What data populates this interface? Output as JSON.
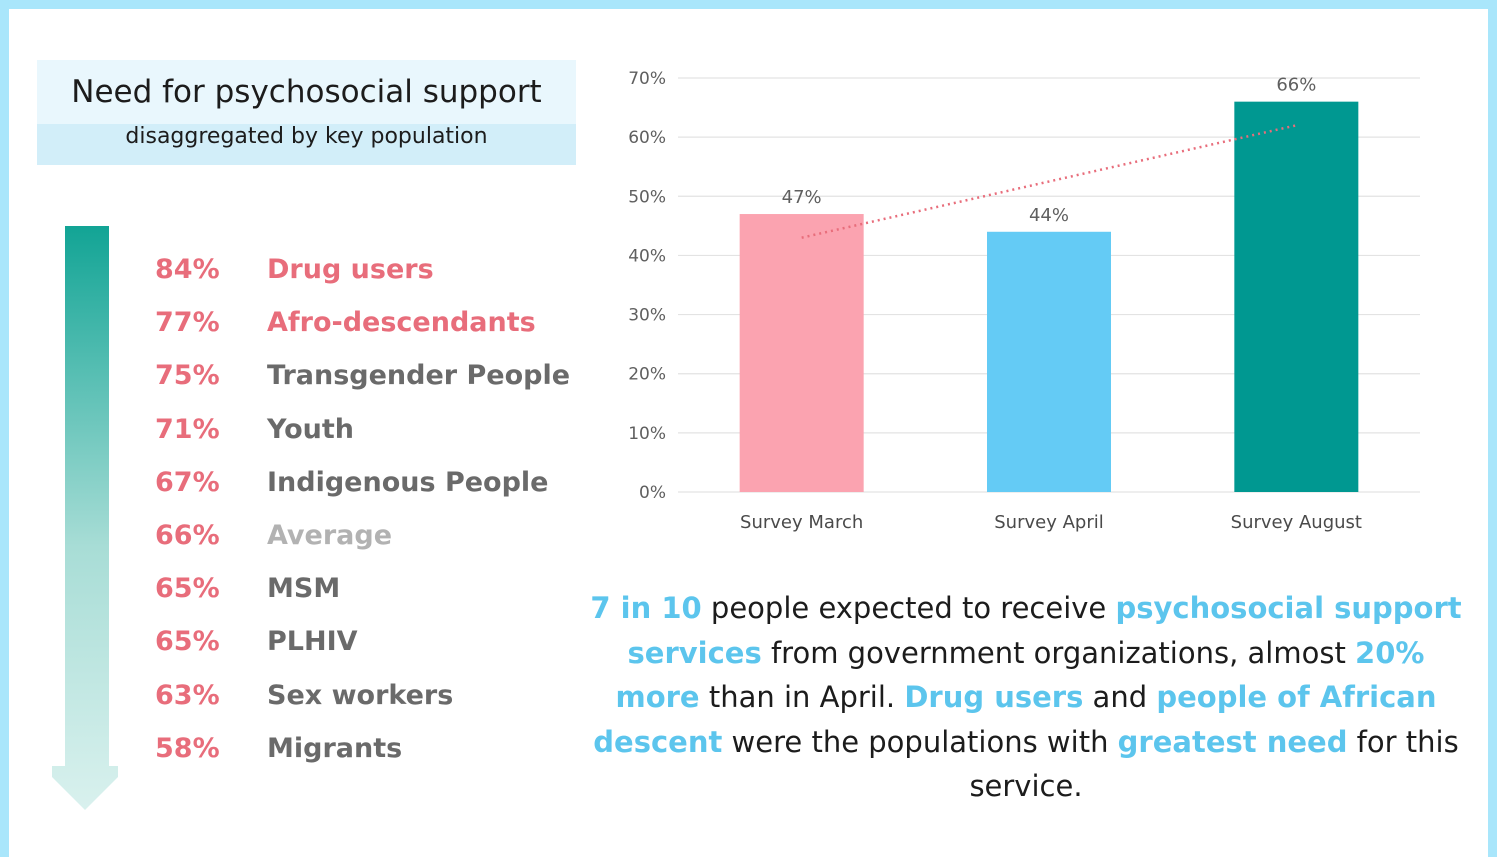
{
  "header": {
    "title": "Need for psychosocial support",
    "subtitle": "disaggregated by key population"
  },
  "colors": {
    "frame": "#a9e6fb",
    "pct_red": "#e86d7b",
    "name_red": "#e86d7b",
    "name_dark": "#6a6a6a",
    "name_light": "#b2b2b2",
    "arrow_top": "#12a495",
    "arrow_bottom": "#d9f1ee",
    "highlight": "#5cc5ed"
  },
  "key_populations": [
    {
      "pct": "84%",
      "name": "Drug users",
      "tone": "red"
    },
    {
      "pct": "77%",
      "name": "Afro-descendants",
      "tone": "red"
    },
    {
      "pct": "75%",
      "name": "Transgender People",
      "tone": "dark"
    },
    {
      "pct": "71%",
      "name": "Youth",
      "tone": "dark"
    },
    {
      "pct": "67%",
      "name": "Indigenous People",
      "tone": "dark"
    },
    {
      "pct": "66%",
      "name": "Average",
      "tone": "light"
    },
    {
      "pct": "65%",
      "name": "MSM",
      "tone": "dark"
    },
    {
      "pct": "65%",
      "name": "PLHIV",
      "tone": "dark"
    },
    {
      "pct": "63%",
      "name": "Sex workers",
      "tone": "dark"
    },
    {
      "pct": "58%",
      "name": "Migrants",
      "tone": "dark"
    }
  ],
  "chart_data": {
    "type": "bar",
    "categories": [
      "Survey March",
      "Survey April",
      "Survey August"
    ],
    "values": [
      47,
      44,
      66
    ],
    "data_labels": [
      "47%",
      "44%",
      "66%"
    ],
    "bar_colors": [
      "#fba3b0",
      "#64cbf5",
      "#009891"
    ],
    "ylim": [
      0,
      70
    ],
    "yticks": [
      0,
      10,
      20,
      30,
      40,
      50,
      60,
      70
    ],
    "ytick_labels": [
      "0%",
      "10%",
      "20%",
      "30%",
      "40%",
      "50%",
      "60%",
      "70%"
    ],
    "grid": true,
    "trendline": {
      "style": "dotted",
      "color": "#e86d7b",
      "start": 43,
      "end": 62
    }
  },
  "summary": {
    "parts": [
      {
        "t": "7 in 10",
        "h": true
      },
      {
        "t": " people expected to receive ",
        "h": false
      },
      {
        "t": "psychosocial support services",
        "h": true
      },
      {
        "t": " from government organizations, almost ",
        "h": false
      },
      {
        "t": "20% more",
        "h": true
      },
      {
        "t": " than in April. ",
        "h": false
      },
      {
        "t": "Drug users",
        "h": true
      },
      {
        "t": " and ",
        "h": false
      },
      {
        "t": "people of African descent",
        "h": true
      },
      {
        "t": " were the populations with ",
        "h": false
      },
      {
        "t": "greatest need",
        "h": true
      },
      {
        "t": " for this service.",
        "h": false
      }
    ]
  }
}
